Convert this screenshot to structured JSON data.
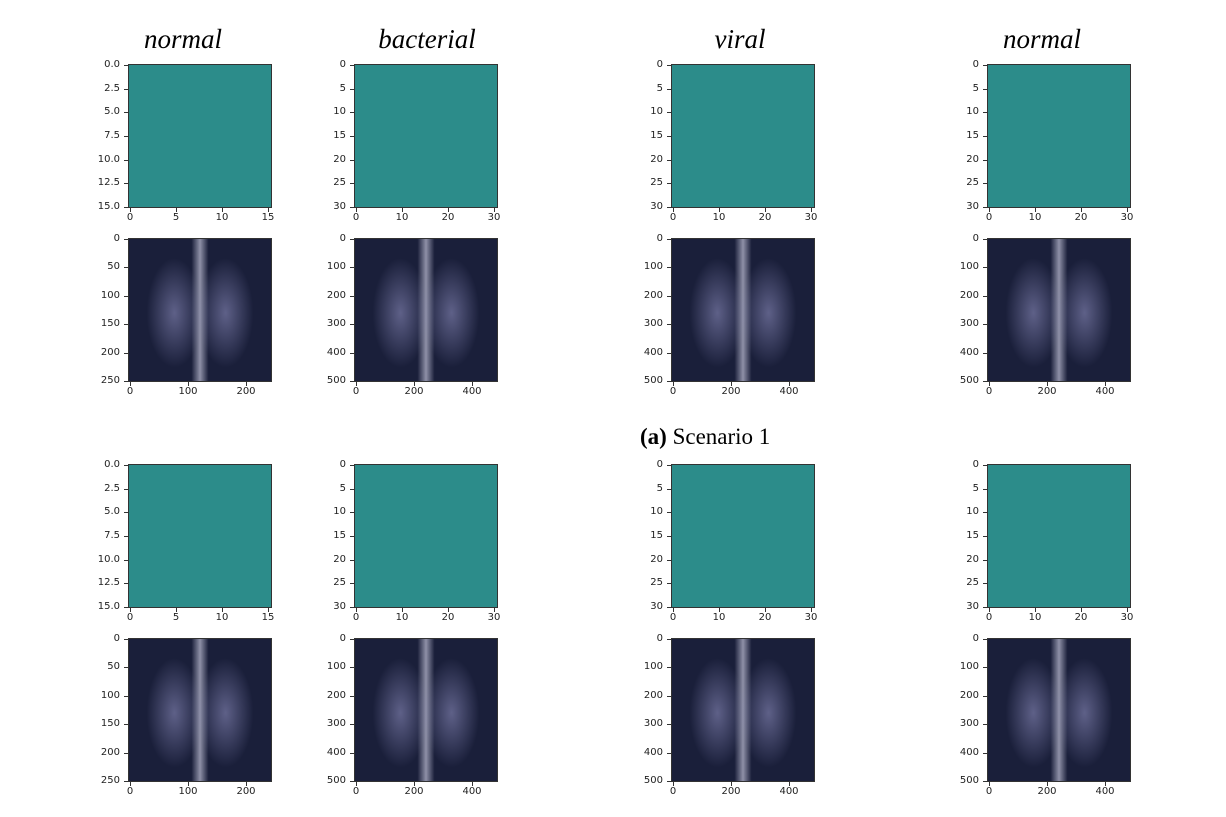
{
  "column_titles": [
    "normal",
    "bacterial",
    "viral",
    "normal"
  ],
  "caption": {
    "label": "(a)",
    "text": "Scenario 1"
  },
  "colors": {
    "heatmap_base": "#2c8c8a",
    "heatmap_dark": "#440154",
    "heatmap_bright": "#fde725",
    "xray_background": "#1a1f3a"
  },
  "panels": [
    {
      "name": "s1-normal-heatmap",
      "kind": "heatmap",
      "yticks": [
        "0.0",
        "2.5",
        "5.0",
        "7.5",
        "10.0",
        "12.5",
        "15.0"
      ],
      "xticks": [
        "0",
        "5",
        "10",
        "15"
      ]
    },
    {
      "name": "s1-bacterial-heatmap",
      "kind": "heatmap",
      "yticks": [
        "0",
        "5",
        "10",
        "15",
        "20",
        "25",
        "30"
      ],
      "xticks": [
        "0",
        "10",
        "20",
        "30"
      ]
    },
    {
      "name": "s1-viral-heatmap",
      "kind": "heatmap",
      "yticks": [
        "0",
        "5",
        "10",
        "15",
        "20",
        "25",
        "30"
      ],
      "xticks": [
        "0",
        "10",
        "20",
        "30"
      ]
    },
    {
      "name": "s1-normal2-heatmap",
      "kind": "heatmap",
      "yticks": [
        "0",
        "5",
        "10",
        "15",
        "20",
        "25",
        "30"
      ],
      "xticks": [
        "0",
        "10",
        "20",
        "30"
      ]
    },
    {
      "name": "s1-normal-xray",
      "kind": "xray",
      "yticks": [
        "0",
        "50",
        "100",
        "150",
        "200",
        "250"
      ],
      "xticks": [
        "0",
        "100",
        "200"
      ]
    },
    {
      "name": "s1-bacterial-xray",
      "kind": "xray",
      "yticks": [
        "0",
        "100",
        "200",
        "300",
        "400",
        "500"
      ],
      "xticks": [
        "0",
        "200",
        "400"
      ]
    },
    {
      "name": "s1-viral-xray",
      "kind": "xray",
      "yticks": [
        "0",
        "100",
        "200",
        "300",
        "400",
        "500"
      ],
      "xticks": [
        "0",
        "200",
        "400"
      ]
    },
    {
      "name": "s1-normal2-xray",
      "kind": "xray",
      "yticks": [
        "0",
        "100",
        "200",
        "300",
        "400",
        "500"
      ],
      "xticks": [
        "0",
        "200",
        "400"
      ]
    },
    {
      "name": "s2-normal-heatmap",
      "kind": "heatmap",
      "yticks": [
        "0.0",
        "2.5",
        "5.0",
        "7.5",
        "10.0",
        "12.5",
        "15.0"
      ],
      "xticks": [
        "0",
        "5",
        "10",
        "15"
      ]
    },
    {
      "name": "s2-bacterial-heatmap",
      "kind": "heatmap",
      "yticks": [
        "0",
        "5",
        "10",
        "15",
        "20",
        "25",
        "30"
      ],
      "xticks": [
        "0",
        "10",
        "20",
        "30"
      ]
    },
    {
      "name": "s2-viral-heatmap",
      "kind": "heatmap",
      "yticks": [
        "0",
        "5",
        "10",
        "15",
        "20",
        "25",
        "30"
      ],
      "xticks": [
        "0",
        "10",
        "20",
        "30"
      ]
    },
    {
      "name": "s2-normal2-heatmap",
      "kind": "heatmap",
      "yticks": [
        "0",
        "5",
        "10",
        "15",
        "20",
        "25",
        "30"
      ],
      "xticks": [
        "0",
        "10",
        "20",
        "30"
      ]
    },
    {
      "name": "s2-normal-xray",
      "kind": "xray",
      "yticks": [
        "0",
        "50",
        "100",
        "150",
        "200",
        "250"
      ],
      "xticks": [
        "0",
        "100",
        "200"
      ]
    },
    {
      "name": "s2-bacterial-xray",
      "kind": "xray",
      "yticks": [
        "0",
        "100",
        "200",
        "300",
        "400",
        "500"
      ],
      "xticks": [
        "0",
        "200",
        "400"
      ]
    },
    {
      "name": "s2-viral-xray",
      "kind": "xray",
      "yticks": [
        "0",
        "100",
        "200",
        "300",
        "400",
        "500"
      ],
      "xticks": [
        "0",
        "200",
        "400"
      ]
    },
    {
      "name": "s2-normal2-xray",
      "kind": "xray",
      "yticks": [
        "0",
        "100",
        "200",
        "300",
        "400",
        "500"
      ],
      "xticks": [
        "0",
        "200",
        "400"
      ]
    }
  ]
}
